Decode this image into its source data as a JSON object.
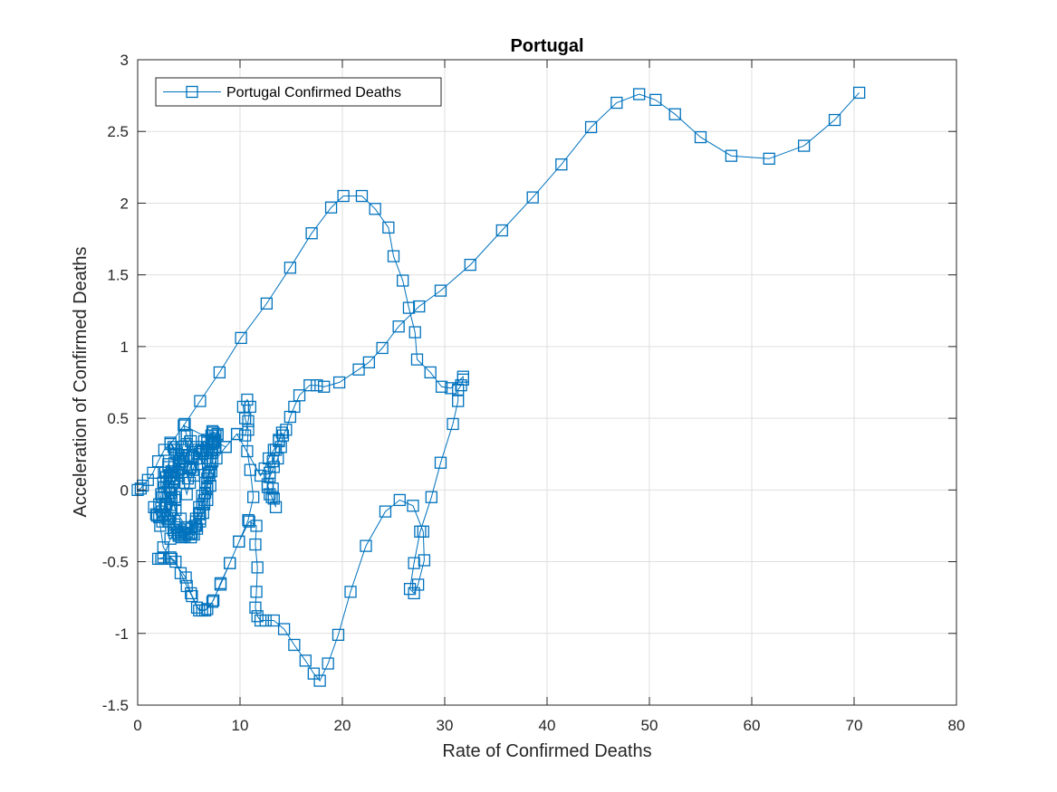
{
  "chart_data": {
    "type": "line",
    "title": "Portugal",
    "xlabel": "Rate of Confirmed Deaths",
    "ylabel": "Acceleration of Confirmed Deaths",
    "xlim": [
      0,
      80
    ],
    "ylim": [
      -1.5,
      3
    ],
    "xticks": [
      "0",
      "10",
      "20",
      "30",
      "40",
      "50",
      "60",
      "70",
      "80"
    ],
    "yticks": [
      "-1.5",
      "-1",
      "-0.5",
      "0",
      "0.5",
      "1",
      "1.5",
      "2",
      "2.5",
      "3"
    ],
    "grid": true,
    "legend_position": "top-left",
    "marker": "square",
    "series": [
      {
        "name": "Portugal Confirmed Deaths",
        "color": "#0072BD",
        "points": [
          [
            0.0,
            0.0
          ],
          [
            0.3,
            0.01
          ],
          [
            0.5,
            0.03
          ],
          [
            1.0,
            0.07
          ],
          [
            1.5,
            0.12
          ],
          [
            2.0,
            0.2
          ],
          [
            2.6,
            0.28
          ],
          [
            3.2,
            0.33
          ],
          [
            3.5,
            0.3
          ],
          [
            3.8,
            0.25
          ],
          [
            4.0,
            0.18
          ],
          [
            3.9,
            0.1
          ],
          [
            3.6,
            0.05
          ],
          [
            3.3,
            0.0
          ],
          [
            3.0,
            -0.05
          ],
          [
            2.7,
            -0.1
          ],
          [
            2.4,
            -0.15
          ],
          [
            2.1,
            -0.19
          ],
          [
            1.8,
            -0.17
          ],
          [
            1.6,
            -0.12
          ],
          [
            1.9,
            -0.18
          ],
          [
            2.4,
            -0.22
          ],
          [
            2.9,
            -0.2
          ],
          [
            3.3,
            -0.14
          ],
          [
            3.6,
            -0.05
          ],
          [
            3.5,
            0.05
          ],
          [
            3.1,
            0.1
          ],
          [
            2.8,
            0.06
          ],
          [
            2.6,
            -0.02
          ],
          [
            2.8,
            -0.1
          ],
          [
            3.2,
            -0.18
          ],
          [
            3.6,
            -0.24
          ],
          [
            3.9,
            -0.3
          ],
          [
            4.3,
            -0.33
          ],
          [
            4.8,
            -0.3
          ],
          [
            5.3,
            -0.27
          ],
          [
            5.7,
            -0.22
          ],
          [
            6.1,
            -0.16
          ],
          [
            6.5,
            -0.07
          ],
          [
            6.8,
            0.02
          ],
          [
            7.0,
            0.12
          ],
          [
            7.1,
            0.22
          ],
          [
            7.2,
            0.32
          ],
          [
            7.4,
            0.4
          ],
          [
            7.6,
            0.38
          ],
          [
            7.3,
            0.33
          ],
          [
            6.9,
            0.3
          ],
          [
            6.5,
            0.34
          ],
          [
            6.2,
            0.27
          ],
          [
            5.8,
            0.18
          ],
          [
            5.5,
            0.1
          ],
          [
            5.2,
            0.16
          ],
          [
            5.0,
            0.24
          ],
          [
            4.8,
            0.32
          ],
          [
            4.6,
            0.38
          ],
          [
            4.4,
            0.3
          ],
          [
            4.2,
            0.22
          ],
          [
            4.0,
            0.14
          ],
          [
            3.6,
            0.08
          ],
          [
            3.3,
            0.13
          ],
          [
            3.0,
            0.16
          ],
          [
            2.8,
            0.09
          ],
          [
            2.6,
            0.02
          ],
          [
            2.4,
            -0.05
          ],
          [
            2.3,
            -0.12
          ],
          [
            2.5,
            -0.18
          ],
          [
            3.0,
            -0.22
          ],
          [
            3.5,
            -0.28
          ],
          [
            4.0,
            -0.31
          ],
          [
            4.6,
            -0.32
          ],
          [
            5.2,
            -0.3
          ],
          [
            5.7,
            -0.25
          ],
          [
            6.1,
            -0.2
          ],
          [
            6.5,
            -0.1
          ],
          [
            6.8,
            0.01
          ],
          [
            7.0,
            0.1
          ],
          [
            7.3,
            0.2
          ],
          [
            7.6,
            0.3
          ],
          [
            7.8,
            0.38
          ],
          [
            7.5,
            0.35
          ],
          [
            7.2,
            0.28
          ],
          [
            6.8,
            0.22
          ],
          [
            6.3,
            0.18
          ],
          [
            6.0,
            0.25
          ],
          [
            5.7,
            0.3
          ],
          [
            5.4,
            0.23
          ],
          [
            5.1,
            0.15
          ],
          [
            4.9,
            0.08
          ],
          [
            4.7,
            0.15
          ],
          [
            4.5,
            0.22
          ],
          [
            4.3,
            0.28
          ],
          [
            4.1,
            0.2
          ],
          [
            3.9,
            0.12
          ],
          [
            3.5,
            0.05
          ],
          [
            3.2,
            0.1
          ],
          [
            3.0,
            0.18
          ],
          [
            2.7,
            0.12
          ],
          [
            2.5,
            0.05
          ],
          [
            2.3,
            -0.03
          ],
          [
            2.1,
            -0.1
          ],
          [
            2.2,
            -0.25
          ],
          [
            2.5,
            -0.4
          ],
          [
            3.2,
            -0.47
          ],
          [
            3.7,
            -0.5
          ],
          [
            4.2,
            -0.58
          ],
          [
            4.8,
            -0.67
          ],
          [
            5.3,
            -0.74
          ],
          [
            5.8,
            -0.82
          ],
          [
            6.3,
            -0.84
          ],
          [
            6.8,
            -0.83
          ],
          [
            7.4,
            -0.77
          ],
          [
            8.1,
            -0.65
          ],
          [
            9.0,
            -0.51
          ],
          [
            9.9,
            -0.36
          ],
          [
            10.8,
            -0.21
          ],
          [
            11.3,
            -0.05
          ],
          [
            11.0,
            0.14
          ],
          [
            10.7,
            0.27
          ],
          [
            10.8,
            0.42
          ],
          [
            10.5,
            0.5
          ],
          [
            10.3,
            0.58
          ],
          [
            10.7,
            0.63
          ],
          [
            11.0,
            0.58
          ],
          [
            10.8,
            0.48
          ],
          [
            10.5,
            0.38
          ],
          [
            9.7,
            0.39
          ],
          [
            8.6,
            0.3
          ],
          [
            7.7,
            0.22
          ],
          [
            7.2,
            0.13
          ],
          [
            7.1,
            0.03
          ],
          [
            6.8,
            -0.07
          ],
          [
            6.4,
            -0.16
          ],
          [
            6.1,
            -0.22
          ],
          [
            5.8,
            -0.27
          ],
          [
            5.5,
            -0.31
          ],
          [
            5.2,
            -0.33
          ],
          [
            4.6,
            -0.3
          ],
          [
            4.0,
            -0.32
          ],
          [
            3.6,
            -0.3
          ],
          [
            3.2,
            -0.34
          ],
          [
            2.5,
            -0.47
          ],
          [
            2.0,
            -0.48
          ],
          [
            2.3,
            -0.48
          ],
          [
            3.3,
            -0.48
          ],
          [
            4.7,
            -0.61
          ],
          [
            5.2,
            -0.72
          ],
          [
            6.0,
            -0.84
          ],
          [
            6.6,
            -0.84
          ],
          [
            7.3,
            -0.78
          ],
          [
            8.1,
            -0.66
          ],
          [
            9.0,
            -0.51
          ],
          [
            9.9,
            -0.36
          ],
          [
            10.9,
            -0.22
          ],
          [
            11.6,
            -0.25
          ],
          [
            11.5,
            -0.38
          ],
          [
            11.7,
            -0.54
          ],
          [
            11.6,
            -0.71
          ],
          [
            11.5,
            -0.82
          ],
          [
            11.7,
            -0.88
          ],
          [
            12.0,
            -0.91
          ],
          [
            12.5,
            -0.91
          ],
          [
            13.3,
            -0.91
          ],
          [
            14.3,
            -0.97
          ],
          [
            15.3,
            -1.08
          ],
          [
            16.4,
            -1.19
          ],
          [
            17.2,
            -1.28
          ],
          [
            17.8,
            -1.33
          ],
          [
            18.6,
            -1.21
          ],
          [
            19.6,
            -1.01
          ],
          [
            20.8,
            -0.71
          ],
          [
            22.3,
            -0.39
          ],
          [
            24.2,
            -0.15
          ],
          [
            25.6,
            -0.07
          ],
          [
            26.9,
            -0.11
          ],
          [
            27.9,
            -0.29
          ],
          [
            28.0,
            -0.49
          ],
          [
            27.4,
            -0.66
          ],
          [
            27.0,
            -0.72
          ],
          [
            26.6,
            -0.69
          ],
          [
            27.0,
            -0.51
          ],
          [
            27.6,
            -0.29
          ],
          [
            28.7,
            -0.05
          ],
          [
            29.6,
            0.19
          ],
          [
            30.8,
            0.46
          ],
          [
            31.3,
            0.62
          ],
          [
            31.3,
            0.7
          ],
          [
            31.6,
            0.73
          ],
          [
            31.8,
            0.77
          ],
          [
            31.8,
            0.79
          ],
          [
            30.6,
            0.71
          ],
          [
            29.7,
            0.72
          ],
          [
            28.6,
            0.82
          ],
          [
            27.3,
            0.91
          ],
          [
            27.1,
            1.1
          ],
          [
            26.5,
            1.27
          ],
          [
            25.9,
            1.46
          ],
          [
            25.0,
            1.63
          ],
          [
            24.5,
            1.83
          ],
          [
            23.2,
            1.96
          ],
          [
            21.9,
            2.05
          ],
          [
            20.1,
            2.05
          ],
          [
            18.9,
            1.97
          ],
          [
            17.0,
            1.79
          ],
          [
            14.9,
            1.55
          ],
          [
            12.6,
            1.3
          ],
          [
            10.1,
            1.06
          ],
          [
            8.0,
            0.82
          ],
          [
            6.1,
            0.62
          ],
          [
            4.6,
            0.46
          ],
          [
            3.2,
            0.32
          ],
          [
            3.6,
            0.28
          ],
          [
            4.4,
            0.2
          ],
          [
            3.5,
            0.13
          ],
          [
            2.8,
            0.05
          ],
          [
            3.2,
            -0.02
          ],
          [
            3.7,
            -0.07
          ],
          [
            3.2,
            -0.12
          ],
          [
            2.7,
            -0.17
          ],
          [
            3.1,
            -0.22
          ],
          [
            3.8,
            -0.26
          ],
          [
            4.2,
            -0.29
          ],
          [
            5.0,
            -0.31
          ],
          [
            5.3,
            -0.26
          ],
          [
            5.7,
            -0.2
          ],
          [
            6.0,
            -0.12
          ],
          [
            6.3,
            -0.04
          ],
          [
            6.6,
            0.05
          ],
          [
            6.9,
            0.12
          ],
          [
            7.1,
            0.2
          ],
          [
            7.3,
            0.28
          ],
          [
            7.6,
            0.34
          ],
          [
            7.8,
            0.39
          ],
          [
            7.3,
            0.41
          ],
          [
            6.8,
            0.35
          ],
          [
            6.3,
            0.28
          ],
          [
            5.8,
            0.22
          ],
          [
            5.4,
            0.14
          ],
          [
            5.1,
            0.05
          ],
          [
            4.8,
            -0.03
          ],
          [
            4.5,
            0.05
          ],
          [
            4.3,
            0.15
          ],
          [
            4.0,
            0.24
          ],
          [
            3.6,
            0.19
          ],
          [
            3.3,
            0.1
          ],
          [
            3.1,
            0.02
          ],
          [
            3.3,
            -0.06
          ],
          [
            3.7,
            -0.14
          ],
          [
            4.2,
            -0.2
          ],
          [
            4.8,
            -0.26
          ],
          [
            5.3,
            -0.3
          ],
          [
            5.6,
            -0.25
          ],
          [
            6.0,
            -0.17
          ],
          [
            6.3,
            -0.1
          ],
          [
            6.6,
            -0.02
          ],
          [
            6.8,
            0.08
          ],
          [
            7.1,
            0.18
          ],
          [
            7.3,
            0.26
          ],
          [
            7.4,
            0.33
          ],
          [
            7.2,
            0.38
          ],
          [
            6.8,
            0.33
          ],
          [
            6.4,
            0.27
          ],
          [
            6.0,
            0.22
          ],
          [
            5.6,
            0.28
          ],
          [
            5.2,
            0.34
          ],
          [
            4.8,
            0.38
          ],
          [
            4.5,
            0.45
          ],
          [
            8.6,
            0.3
          ],
          [
            9.7,
            0.39
          ],
          [
            12.0,
            0.1
          ],
          [
            12.4,
            0.15
          ],
          [
            12.8,
            0.22
          ],
          [
            13.3,
            0.28
          ],
          [
            13.8,
            0.34
          ],
          [
            14.1,
            0.4
          ],
          [
            13.8,
            0.35
          ],
          [
            13.5,
            0.28
          ],
          [
            13.2,
            0.2
          ],
          [
            12.9,
            0.12
          ],
          [
            12.7,
            0.04
          ],
          [
            12.9,
            -0.03
          ],
          [
            13.2,
            0.01
          ],
          [
            13.3,
            -0.06
          ],
          [
            13.5,
            -0.12
          ],
          [
            13.1,
            -0.05
          ],
          [
            12.7,
            0.02
          ],
          [
            12.9,
            0.09
          ],
          [
            13.3,
            0.16
          ],
          [
            13.7,
            0.22
          ],
          [
            14.0,
            0.3
          ],
          [
            14.2,
            0.38
          ],
          [
            14.5,
            0.42
          ],
          [
            14.9,
            0.51
          ],
          [
            15.3,
            0.58
          ],
          [
            15.8,
            0.66
          ],
          [
            16.8,
            0.73
          ],
          [
            17.5,
            0.73
          ],
          [
            18.2,
            0.72
          ],
          [
            19.7,
            0.75
          ],
          [
            21.6,
            0.84
          ],
          [
            22.6,
            0.89
          ],
          [
            23.9,
            0.99
          ],
          [
            25.5,
            1.14
          ],
          [
            27.5,
            1.28
          ],
          [
            29.6,
            1.39
          ],
          [
            32.5,
            1.57
          ],
          [
            35.6,
            1.81
          ],
          [
            38.6,
            2.04
          ],
          [
            41.4,
            2.27
          ],
          [
            44.3,
            2.53
          ],
          [
            46.8,
            2.7
          ],
          [
            49.0,
            2.76
          ],
          [
            50.6,
            2.72
          ],
          [
            52.5,
            2.62
          ],
          [
            55.0,
            2.46
          ],
          [
            58.0,
            2.33
          ],
          [
            61.7,
            2.31
          ],
          [
            65.1,
            2.4
          ],
          [
            68.1,
            2.58
          ],
          [
            70.5,
            2.77
          ]
        ]
      }
    ]
  }
}
